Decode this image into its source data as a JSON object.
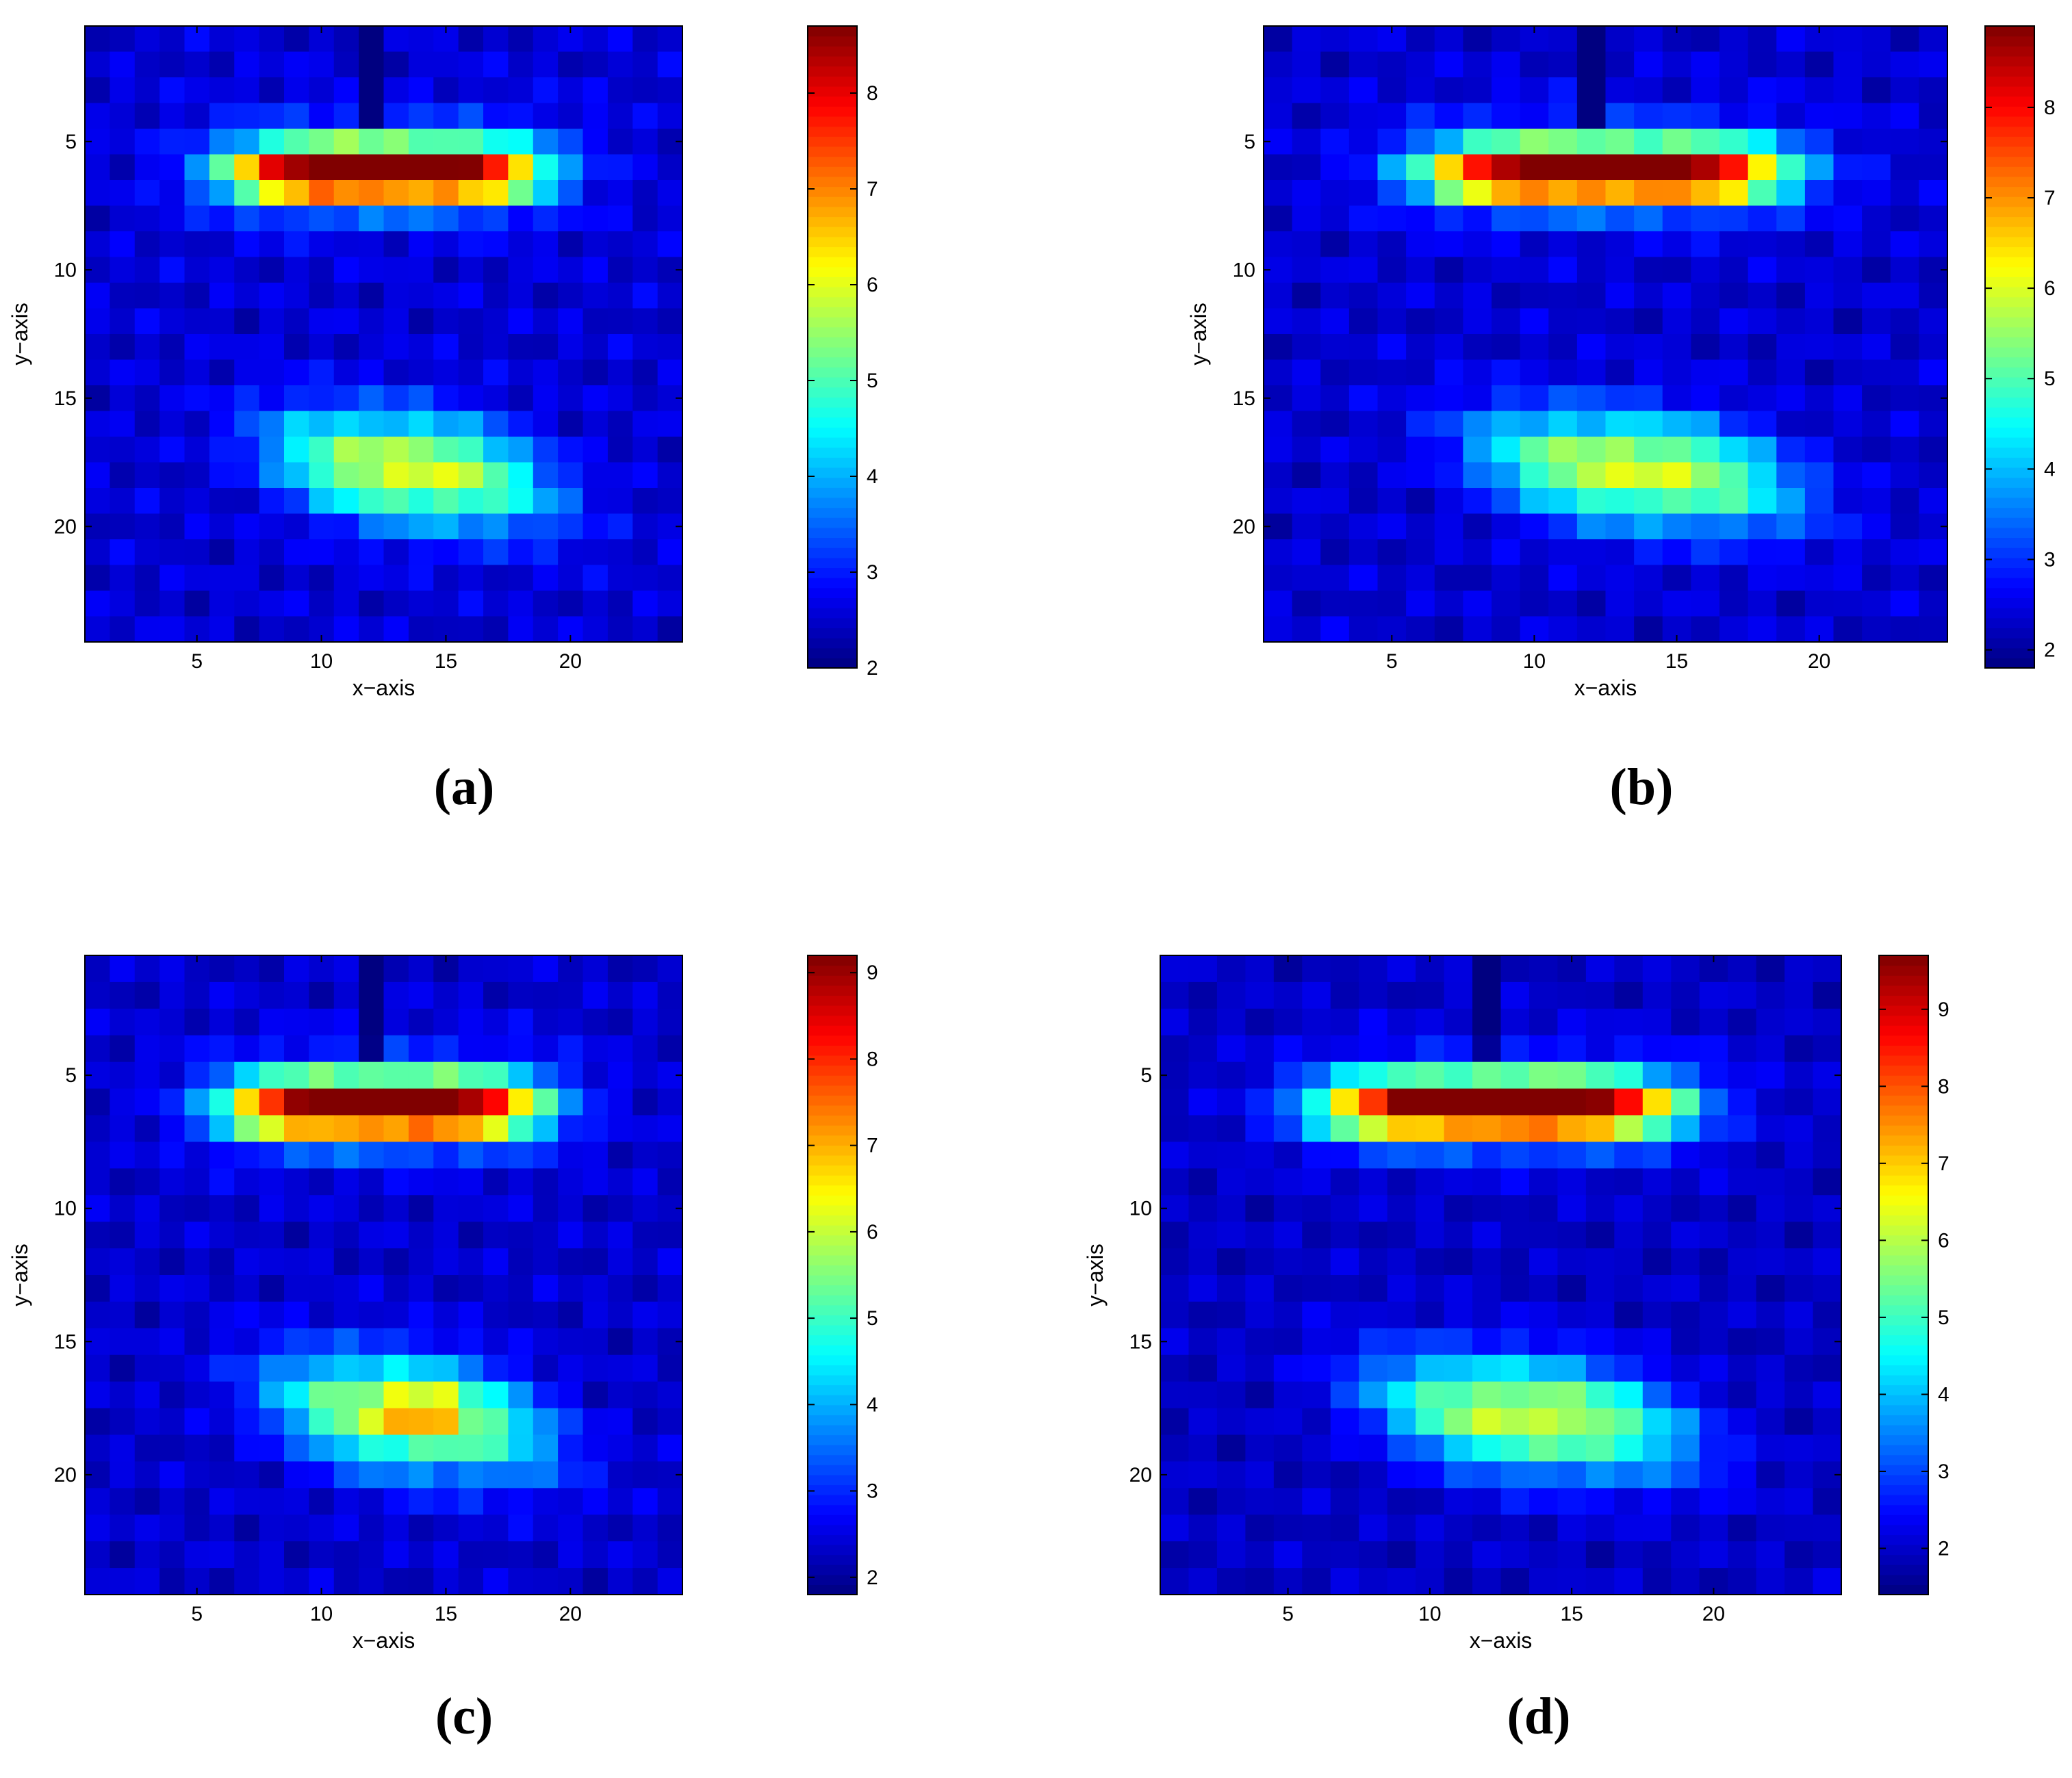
{
  "chart_data": [
    {
      "type": "heatmap",
      "panel_label": "(a)",
      "xlabel": "x−axis",
      "ylabel": "y−axis",
      "xlim": [
        0.5,
        24.5
      ],
      "ylim": [
        24.5,
        0.5
      ],
      "x_ticks": [
        5,
        10,
        15,
        20
      ],
      "y_ticks": [
        5,
        10,
        15,
        20
      ],
      "colorbar_range": [
        2.0,
        8.7
      ],
      "colorbar_ticks": [
        2,
        3,
        4,
        5,
        6,
        7,
        8
      ],
      "colormap": "jet",
      "grid": false
    },
    {
      "type": "heatmap",
      "panel_label": "(b)",
      "xlabel": "x−axis",
      "ylabel": "y−axis",
      "xlim": [
        0.5,
        24.5
      ],
      "ylim": [
        24.5,
        0.5
      ],
      "x_ticks": [
        5,
        10,
        15,
        20
      ],
      "y_ticks": [
        5,
        10,
        15,
        20
      ],
      "colorbar_range": [
        1.8,
        8.9
      ],
      "colorbar_ticks": [
        2,
        3,
        4,
        5,
        6,
        7,
        8
      ],
      "colormap": "jet",
      "grid": false
    },
    {
      "type": "heatmap",
      "panel_label": "(c)",
      "xlabel": "x−axis",
      "ylabel": "y−axis",
      "xlim": [
        0.5,
        24.5
      ],
      "ylim": [
        24.5,
        0.5
      ],
      "x_ticks": [
        5,
        10,
        15,
        20
      ],
      "y_ticks": [
        5,
        10,
        15,
        20
      ],
      "colorbar_range": [
        1.8,
        9.2
      ],
      "colorbar_ticks": [
        2,
        3,
        4,
        5,
        6,
        7,
        8,
        9
      ],
      "colormap": "jet",
      "grid": false
    },
    {
      "type": "heatmap",
      "panel_label": "(d)",
      "xlabel": "x−axis",
      "ylabel": "y−axis",
      "xlim": [
        0.5,
        24.5
      ],
      "ylim": [
        24.5,
        0.5
      ],
      "x_ticks": [
        5,
        10,
        15,
        20
      ],
      "y_ticks": [
        5,
        10,
        15,
        20
      ],
      "colorbar_range": [
        1.4,
        9.7
      ],
      "colorbar_ticks": [
        2,
        3,
        4,
        5,
        6,
        7,
        8,
        9
      ],
      "colormap": "jet",
      "grid": false
    }
  ]
}
